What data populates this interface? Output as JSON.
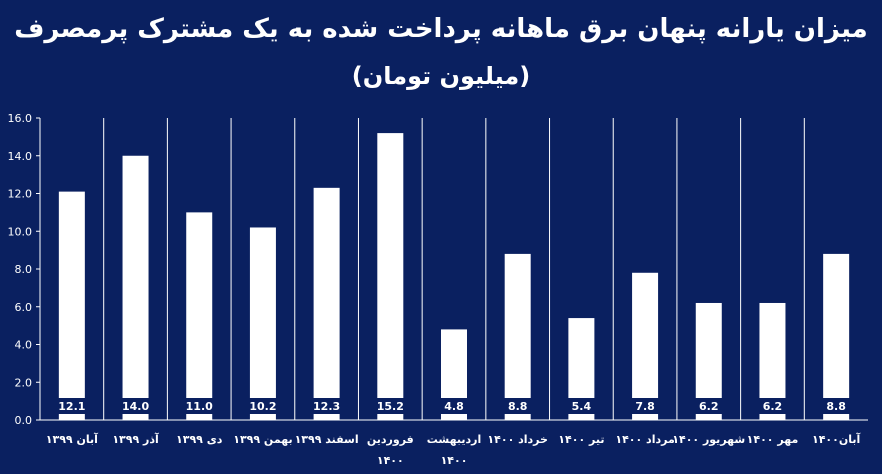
{
  "chart_data": {
    "type": "bar",
    "title": "میزان یارانه پنهان برق ماهانه پرداخت شده به یک مشترک پرمصرف",
    "subtitle": "(میلیون تومان)",
    "categories": [
      "آبان ۱۳۹۹",
      "آذر ۱۳۹۹",
      "دی ۱۳۹۹",
      "بهمن ۱۳۹۹",
      "اسفند ۱۳۹۹",
      "فروردین ۱۴۰۰",
      "اردیبهشت ۱۴۰۰",
      "خرداد ۱۴۰۰",
      "تیر ۱۴۰۰",
      "مرداد ۱۴۰۰",
      "شهریور ۱۴۰۰",
      "مهر ۱۴۰۰",
      "آبان۱۴۰۰"
    ],
    "values": [
      12.1,
      14.0,
      11.0,
      10.2,
      12.3,
      15.2,
      4.8,
      8.8,
      5.4,
      7.8,
      6.2,
      6.2,
      8.8
    ],
    "value_labels": [
      "12.1",
      "14.0",
      "11.0",
      "10.2",
      "12.3",
      "15.2",
      "4.8",
      "8.8",
      "5.4",
      "7.8",
      "6.2",
      "6.2",
      "8.8"
    ],
    "yticks": [
      "0.0",
      "2.0",
      "4.0",
      "6.0",
      "8.0",
      "10.0",
      "12.0",
      "14.0",
      "16.0"
    ],
    "ylim": [
      0,
      16
    ],
    "xlabel": "",
    "ylabel": "",
    "grid": false,
    "legend": "none",
    "colors": {
      "background": "#0a2060",
      "bar": "#ffffff",
      "text": "#ffffff",
      "label_box": "#0a2060"
    }
  }
}
